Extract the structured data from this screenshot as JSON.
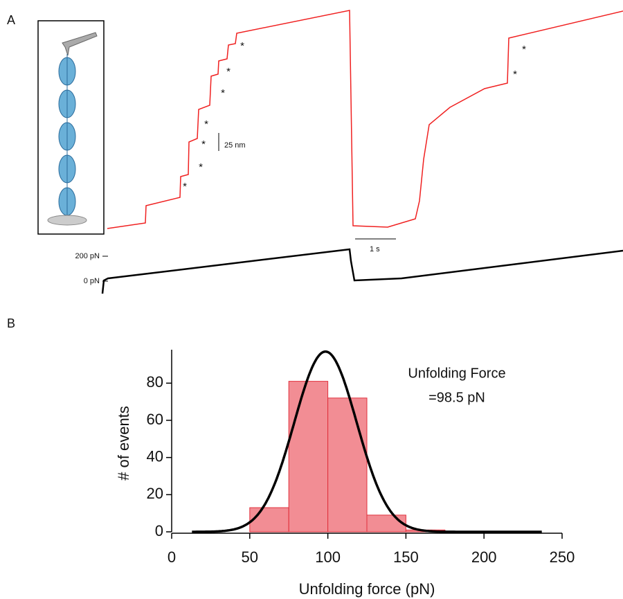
{
  "panel_a": {
    "label": "A",
    "scale_bar_length": "25 nm",
    "scale_bar_time": "1 s",
    "force_labels": [
      "200 pN",
      "0 pN"
    ],
    "step_markers": [
      "*",
      "*",
      "*",
      "*",
      "*",
      "*",
      "*",
      "*",
      "*"
    ]
  },
  "chart_data": {
    "type": "histogram",
    "panel_label": "B",
    "xlabel": "Unfolding force (pN)",
    "ylabel": "# of events",
    "annotation": [
      "Unfolding Force",
      "=98.5 pN"
    ],
    "bins": [
      0,
      25,
      50,
      75,
      100,
      125,
      150,
      175,
      200,
      225,
      250
    ],
    "values": [
      0,
      0,
      13,
      81,
      72,
      9,
      1,
      0,
      0,
      0
    ],
    "color": "#ef7079",
    "xlim": [
      0,
      250
    ],
    "xticks": [
      0,
      50,
      100,
      150,
      200,
      250
    ],
    "ylim": [
      0,
      98
    ],
    "yticks": [
      0,
      20,
      40,
      60,
      80
    ],
    "fit": {
      "amplitude": 97,
      "mean": 98.5,
      "sigma": 20,
      "range": [
        13,
        237
      ],
      "color": "#000000"
    }
  }
}
